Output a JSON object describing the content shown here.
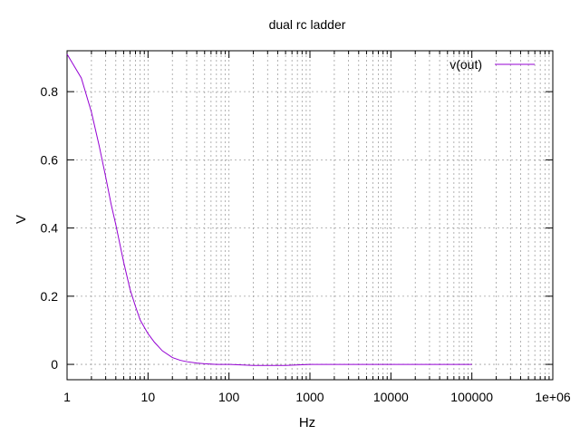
{
  "chart_data": {
    "type": "line",
    "title": "dual rc ladder",
    "xlabel": "Hz",
    "ylabel": "V",
    "xscale": "log",
    "xlim": [
      1,
      1000000
    ],
    "ylim": [
      -0.045,
      0.92
    ],
    "grid": true,
    "legend_position": "top-right",
    "x_ticks": [
      {
        "value": 1,
        "label": "1"
      },
      {
        "value": 10,
        "label": "10"
      },
      {
        "value": 100,
        "label": "100"
      },
      {
        "value": 1000,
        "label": "1000"
      },
      {
        "value": 10000,
        "label": "10000"
      },
      {
        "value": 100000,
        "label": "100000"
      },
      {
        "value": 1000000,
        "label": "1e+06"
      }
    ],
    "y_ticks": [
      {
        "value": 0,
        "label": "0"
      },
      {
        "value": 0.2,
        "label": "0.2"
      },
      {
        "value": 0.4,
        "label": "0.4"
      },
      {
        "value": 0.6,
        "label": "0.6"
      },
      {
        "value": 0.8,
        "label": "0.8"
      }
    ],
    "series": [
      {
        "name": "v(out)",
        "color": "#9400d3",
        "x": [
          1,
          1.5,
          2,
          2.5,
          3,
          3.5,
          4,
          5,
          6,
          7,
          8,
          10,
          12,
          15,
          20,
          25,
          30,
          40,
          50,
          60,
          70,
          100,
          200,
          500,
          1000,
          10000,
          100000
        ],
        "y": [
          0.91,
          0.84,
          0.74,
          0.64,
          0.55,
          0.47,
          0.41,
          0.3,
          0.22,
          0.17,
          0.13,
          0.09,
          0.065,
          0.04,
          0.02,
          0.012,
          0.008,
          0.004,
          0.002,
          0.001,
          0.0,
          0.0,
          -0.003,
          -0.003,
          0.0,
          0.0,
          0.0
        ]
      }
    ]
  }
}
